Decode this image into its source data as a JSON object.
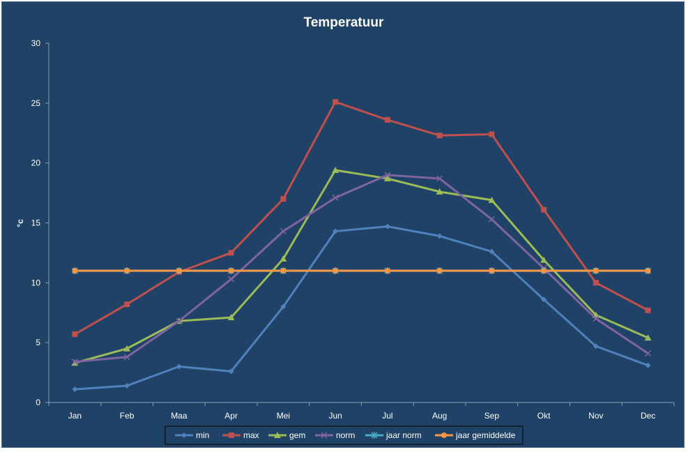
{
  "chart_data": {
    "type": "line",
    "title": "Temperatuur",
    "xlabel": "",
    "ylabel": "°c",
    "ylim": [
      0,
      30
    ],
    "yticks": [
      0,
      5,
      10,
      15,
      20,
      25,
      30
    ],
    "grid": false,
    "legend_position": "bottom",
    "categories": [
      "Jan",
      "Feb",
      "Maa",
      "Apr",
      "Mei",
      "Jun",
      "Jul",
      "Aug",
      "Sep",
      "Okt",
      "Nov",
      "Dec"
    ],
    "series": [
      {
        "name": "min",
        "color": "#4f81bd",
        "marker": "diamond",
        "values": [
          1.1,
          1.4,
          3.0,
          2.6,
          8.0,
          14.3,
          14.7,
          13.9,
          12.6,
          8.6,
          4.7,
          3.1
        ]
      },
      {
        "name": "max",
        "color": "#c0504d",
        "marker": "square",
        "values": [
          5.7,
          8.2,
          10.9,
          12.5,
          17.0,
          25.1,
          23.6,
          22.3,
          22.4,
          16.1,
          10.0,
          7.7
        ]
      },
      {
        "name": "gem",
        "color": "#9bbb59",
        "marker": "triangle",
        "values": [
          3.3,
          4.5,
          6.8,
          7.1,
          12.0,
          19.4,
          18.7,
          17.6,
          16.9,
          11.9,
          7.3,
          5.4
        ]
      },
      {
        "name": "norm",
        "color": "#8064a2",
        "marker": "x",
        "values": [
          3.4,
          3.8,
          6.8,
          10.3,
          14.3,
          17.1,
          19.0,
          18.7,
          15.3,
          11.2,
          7.0,
          4.1
        ]
      },
      {
        "name": "jaar norm",
        "color": "#4bacc6",
        "marker": "star",
        "values": [
          11.0,
          11.0,
          11.0,
          11.0,
          11.0,
          11.0,
          11.0,
          11.0,
          11.0,
          11.0,
          11.0,
          11.0
        ]
      },
      {
        "name": "jaar gemiddelde",
        "color": "#f79646",
        "marker": "circle",
        "values": [
          11.0,
          11.0,
          11.0,
          11.0,
          11.0,
          11.0,
          11.0,
          11.0,
          11.0,
          11.0,
          11.0,
          11.0
        ]
      }
    ]
  }
}
